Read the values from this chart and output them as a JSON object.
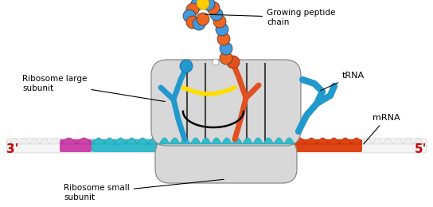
{
  "bg_color": "#ffffff",
  "peptide_blue": "#4499dd",
  "peptide_orange": "#ee6622",
  "peptide_yellow": "#ffcc00",
  "trna_blue": "#2299cc",
  "trna_orange": "#e05020",
  "yellow_arc": "#ffdd00",
  "ribosome_fill": "#d8d8d8",
  "ribosome_edge": "#888888",
  "mrna_cyan": "#33bbcc",
  "mrna_purple": "#cc44aa",
  "mrna_orange": "#dd4411",
  "mrna_white": "#f0f0f0",
  "label_red": "#cc0000",
  "label_color": "#000000",
  "labels": {
    "growing_peptide": "Growing peptide\nchain",
    "trna": "tRNA",
    "mrna": "mRNA",
    "large_subunit": "Ribosome large\nsubunit",
    "small_subunit": "Ribosome small\nsubunit",
    "prime3": "3'",
    "prime5": "5'"
  }
}
